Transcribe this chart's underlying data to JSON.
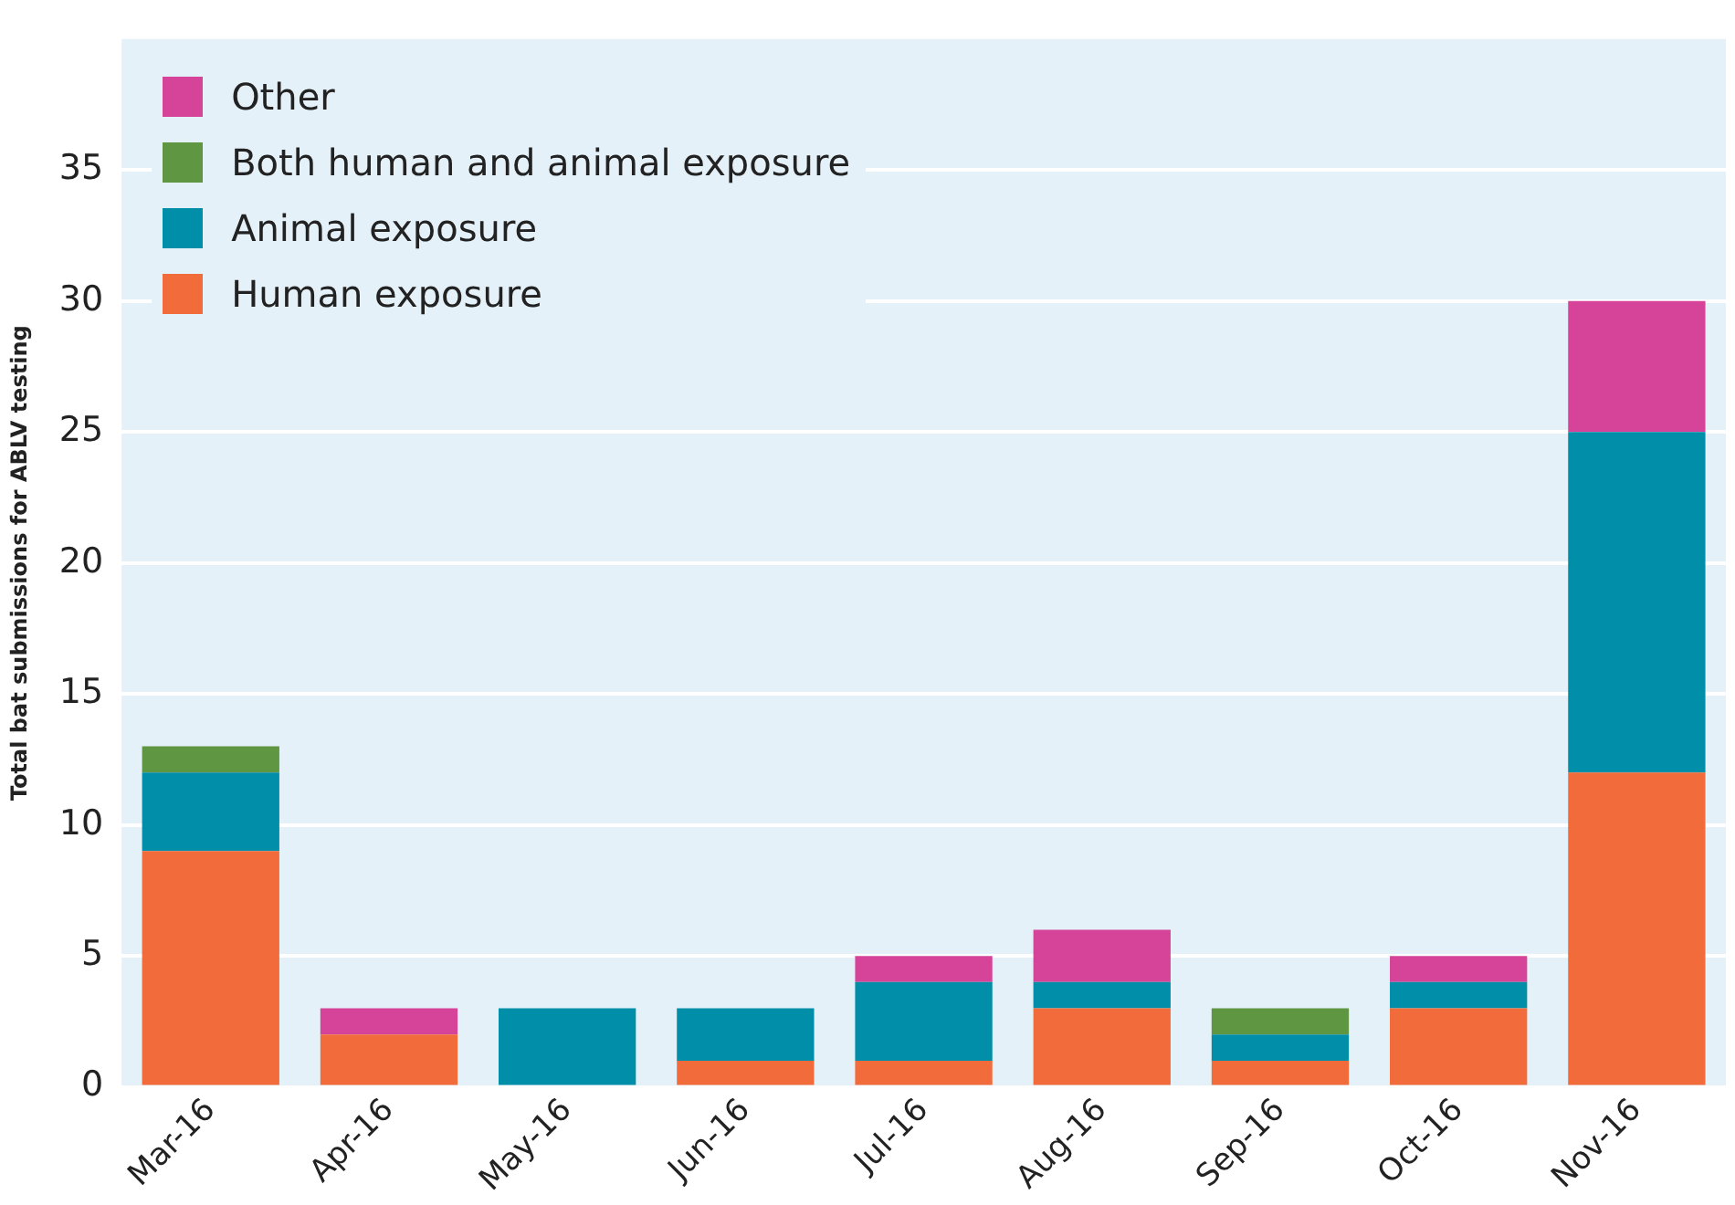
{
  "chart_data": {
    "type": "bar",
    "stacked": true,
    "ylabel": "Total bat submissions for ABLV testing",
    "categories": [
      "Mar-16",
      "Apr-16",
      "May-16",
      "Jun-16",
      "Jul-16",
      "Aug-16",
      "Sep-16",
      "Oct-16",
      "Nov-16"
    ],
    "series": [
      {
        "name": "Human exposure",
        "color": "#f26b3a",
        "values": [
          9,
          2,
          0,
          1,
          1,
          3,
          1,
          3,
          12
        ]
      },
      {
        "name": "Animal exposure",
        "color": "#008ea8",
        "values": [
          3,
          0,
          3,
          2,
          3,
          1,
          1,
          1,
          13
        ]
      },
      {
        "name": "Both human and animal exposure",
        "color": "#5e9642",
        "values": [
          1,
          0,
          0,
          0,
          0,
          0,
          1,
          0,
          0
        ]
      },
      {
        "name": "Other",
        "color": "#d6449a",
        "values": [
          0,
          1,
          0,
          0,
          1,
          2,
          0,
          1,
          5
        ]
      }
    ],
    "ylim": [
      0,
      40
    ],
    "yticks": [
      0,
      5,
      10,
      15,
      20,
      25,
      30,
      35
    ],
    "grid": "y",
    "legend": "top left"
  }
}
